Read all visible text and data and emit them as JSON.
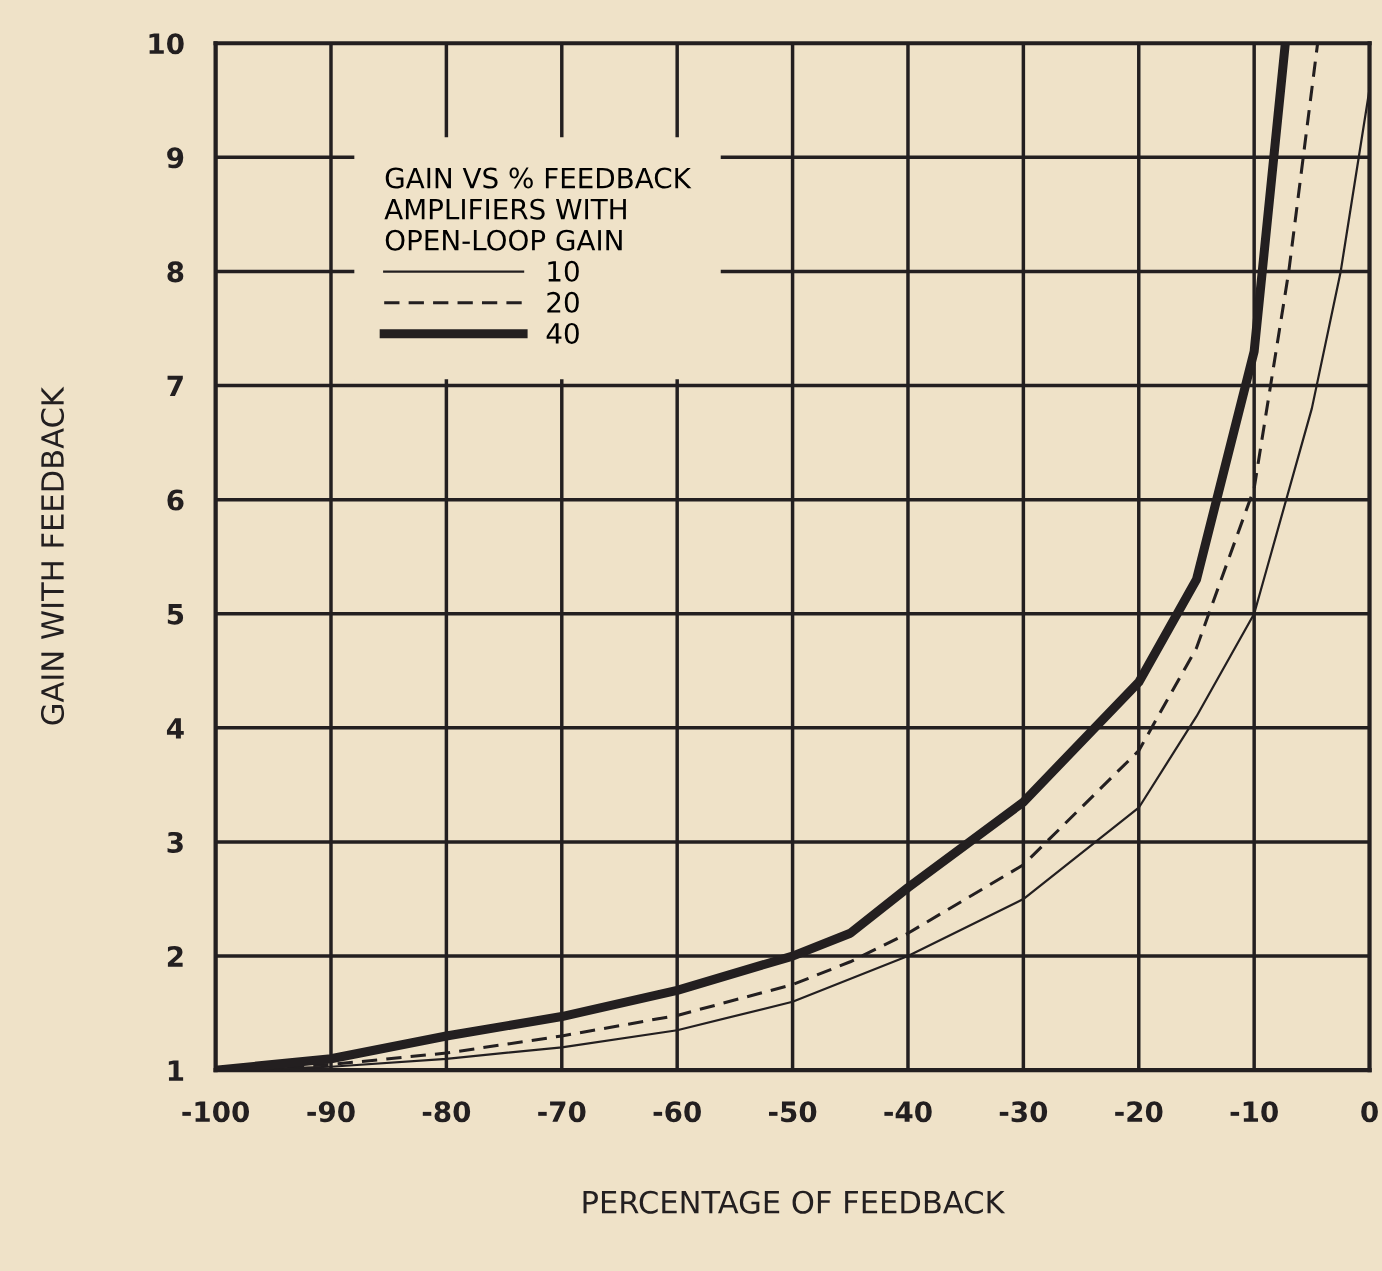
{
  "chart_data": {
    "type": "line",
    "xlabel": "PERCENTAGE OF FEEDBACK",
    "ylabel": "GAIN WITH FEEDBACK",
    "legend_title": "GAIN VS % FEEDBACK\nAMPLIFIERS WITH\nOPEN-LOOP GAIN",
    "series": [
      {
        "name": "10",
        "color": "#231f20",
        "line_style": "solid",
        "x": [
          -100,
          -90,
          -80,
          -70,
          -60,
          -50,
          -40,
          -30,
          -20,
          -15,
          -10,
          -5,
          -2.5,
          0
        ],
        "values": [
          1,
          1.03,
          1.1,
          1.2,
          1.35,
          1.6,
          2.0,
          2.5,
          3.3,
          4.1,
          5.0,
          6.8,
          8.0,
          9.6
        ]
      },
      {
        "name": "20",
        "color": "#231f20",
        "line_style": "dashed",
        "x": [
          -100,
          -90,
          -80,
          -70,
          -60,
          -50,
          -45,
          -40,
          -30,
          -20,
          -15,
          -10,
          -7,
          -4.5
        ],
        "values": [
          1,
          1.05,
          1.15,
          1.3,
          1.48,
          1.75,
          1.95,
          2.2,
          2.8,
          3.8,
          4.7,
          6.1,
          8.0,
          10
        ]
      },
      {
        "name": "40",
        "color": "#231f20",
        "line_style": "solid",
        "x": [
          -100,
          -90,
          -80,
          -70,
          -60,
          -50,
          -45,
          -40,
          -30,
          -20,
          -15,
          -10,
          -8.5,
          -7.3
        ],
        "values": [
          1,
          1.1,
          1.3,
          1.47,
          1.7,
          2.0,
          2.2,
          2.6,
          3.35,
          4.4,
          5.3,
          7.3,
          8.8,
          10
        ]
      }
    ],
    "xlim": [
      -100,
      0
    ],
    "xticks": [
      -100,
      -90,
      -80,
      -70,
      -60,
      -50,
      -40,
      -30,
      -20,
      -10,
      0
    ],
    "ylim": [
      1,
      10
    ],
    "yticks": [
      1,
      2,
      3,
      4,
      5,
      6,
      7,
      8,
      9,
      10
    ],
    "grid": true,
    "legend": "top left",
    "marker": "none"
  }
}
